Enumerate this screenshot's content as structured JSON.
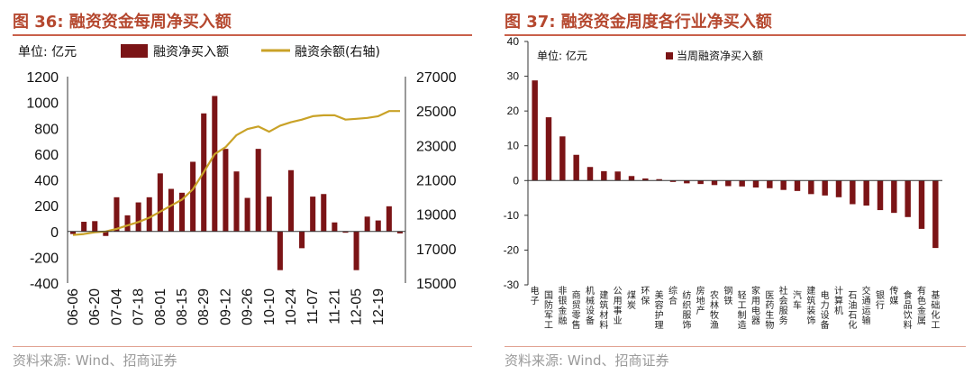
{
  "colors": {
    "bar": "#7b1416",
    "line": "#c9a227",
    "title": "#b5482f",
    "rule": "#c9604a"
  },
  "chart_data": [
    {
      "type": "bar+line",
      "title": "图 36:  融资资金每周净买入额",
      "unit_label": "单位:  亿元",
      "source": "资料来源:  Wind、招商证券",
      "legend": [
        "融资净买入额",
        "融资余额(右轴)"
      ],
      "ylim_left": [
        -400,
        1200
      ],
      "yticks_left": [
        -400,
        -200,
        0,
        200,
        400,
        600,
        800,
        1000,
        1200
      ],
      "ytick_labels_left": [
        "-400",
        "-200",
        "0",
        "200",
        "400",
        "600",
        "800",
        "1000",
        "1200"
      ],
      "ylim_right": [
        15000,
        27000
      ],
      "yticks_right": [
        15000,
        17000,
        19000,
        21000,
        23000,
        25000,
        27000
      ],
      "ytick_labels_right": [
        "15000",
        "17000",
        "19000",
        "21000",
        "23000",
        "25000",
        "27000"
      ],
      "xtick_labels": [
        "06-06",
        "06-20",
        "07-04",
        "07-18",
        "08-01",
        "08-15",
        "08-29",
        "09-12",
        "09-26",
        "10-10",
        "10-24",
        "11-07",
        "11-21",
        "12-05",
        "12-19"
      ],
      "series": [
        {
          "name": "融资净买入额",
          "kind": "bar",
          "values": [
            -20,
            75,
            80,
            -35,
            265,
            125,
            225,
            265,
            450,
            330,
            300,
            540,
            915,
            1050,
            640,
            465,
            260,
            640,
            270,
            -300,
            475,
            -130,
            270,
            290,
            70,
            -10,
            -300,
            115,
            85,
            195,
            -15
          ]
        },
        {
          "name": "融资余额(右轴)",
          "kind": "line",
          "values": [
            17800,
            17850,
            17950,
            18000,
            18150,
            18350,
            18550,
            18800,
            19150,
            19500,
            19850,
            20450,
            21450,
            22500,
            22900,
            23600,
            23950,
            24100,
            23800,
            24150,
            24350,
            24500,
            24700,
            24750,
            24750,
            24500,
            24550,
            24600,
            24700,
            25000,
            25000
          ]
        }
      ]
    },
    {
      "type": "bar",
      "title": "图 37:  融资资金周度各行业净买入额",
      "unit_label": "单位:  亿元",
      "source": "资料来源:  Wind、招商证券",
      "legend": [
        "当周融资净买入额"
      ],
      "ylim": [
        -30,
        40
      ],
      "yticks": [
        -30,
        -20,
        -10,
        0,
        10,
        20,
        30,
        40
      ],
      "ytick_labels": [
        "-30",
        "-20",
        "-10",
        "0",
        "10",
        "20",
        "30",
        "40"
      ],
      "categories": [
        "电子",
        "国防军工",
        "非银金融",
        "商贸零售",
        "机械设备",
        "建筑材料",
        "公用事业",
        "煤炭",
        "环保",
        "美容护理",
        "综合",
        "纺织服饰",
        "房地产",
        "农林牧渔",
        "钢铁",
        "轻工制造",
        "家用电器",
        "医药生物",
        "社会服务",
        "汽车",
        "建筑装饰",
        "电力设备",
        "计算机",
        "石油石化",
        "交通运输",
        "银行",
        "传媒",
        "食品饮料",
        "有色金属",
        "基础化工"
      ],
      "values": [
        28.8,
        18.2,
        12.7,
        7.4,
        3.9,
        2.7,
        2.6,
        1.3,
        0.6,
        0.4,
        -0.4,
        -0.8,
        -1.0,
        -1.3,
        -1.6,
        -1.7,
        -2.0,
        -2.2,
        -2.7,
        -3.0,
        -3.9,
        -4.3,
        -4.8,
        -6.8,
        -7.2,
        -8.5,
        -9.3,
        -10.5,
        -13.9,
        -19.4
      ]
    }
  ]
}
